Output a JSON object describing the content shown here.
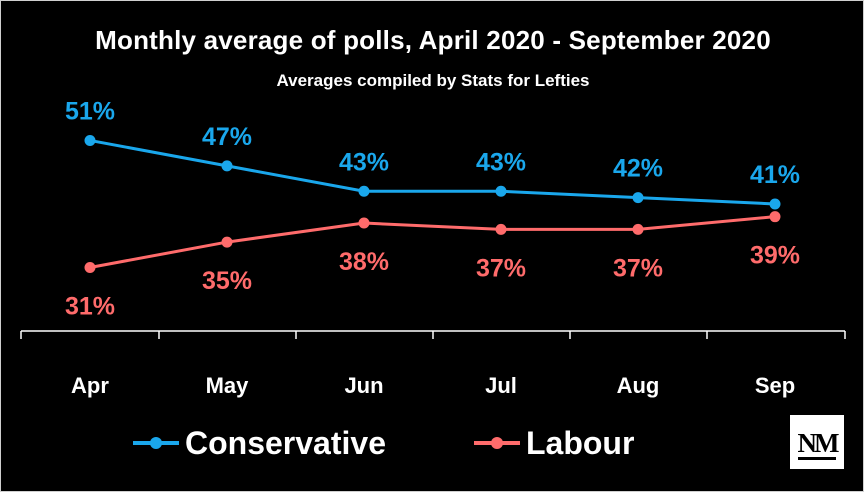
{
  "chart_data": {
    "type": "line",
    "title": "Monthly average of polls, April 2020 - September 2020",
    "subtitle": "Averages compiled by Stats for Lefties",
    "categories": [
      "Apr",
      "May",
      "Jun",
      "Jul",
      "Aug",
      "Sep"
    ],
    "series": [
      {
        "name": "Conservative",
        "color": "#1aa7ec",
        "values": [
          51,
          47,
          43,
          43,
          42,
          41
        ],
        "labels": [
          "51%",
          "47%",
          "43%",
          "43%",
          "42%",
          "41%"
        ]
      },
      {
        "name": "Labour",
        "color": "#ff6b6b",
        "values": [
          31,
          35,
          38,
          37,
          37,
          39
        ],
        "labels": [
          "31%",
          "35%",
          "38%",
          "37%",
          "37%",
          "39%"
        ]
      }
    ],
    "ylim": [
      21,
      58
    ],
    "grid": false,
    "legend_position": "bottom"
  },
  "logo": {
    "text": "NM",
    "icon": "nm-logo-icon"
  }
}
